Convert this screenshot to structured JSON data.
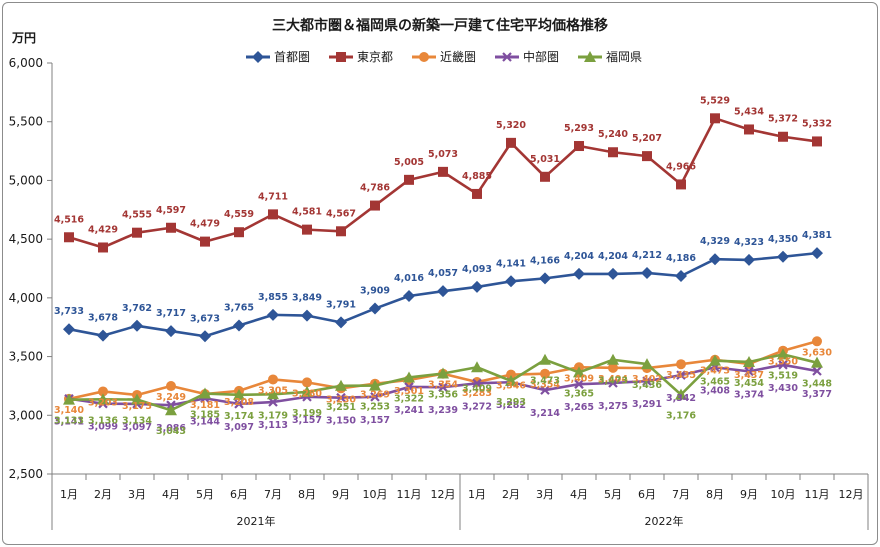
{
  "chart_data": {
    "type": "line",
    "title": "三大都市圏＆福岡県の新築一戸建て住宅平均価格推移",
    "ylabel": "万円",
    "ylim": [
      2500,
      6000
    ],
    "yticks": [
      "2,500",
      "3,000",
      "3,500",
      "4,000",
      "4,500",
      "5,000",
      "5,500",
      "6,000"
    ],
    "grid": false,
    "legend_position": "top",
    "categories": [
      "1月",
      "2月",
      "3月",
      "4月",
      "5月",
      "6月",
      "7月",
      "8月",
      "9月",
      "10月",
      "11月",
      "12月",
      "1月",
      "2月",
      "3月",
      "4月",
      "5月",
      "6月",
      "7月",
      "8月",
      "9月",
      "10月",
      "11月",
      "12月"
    ],
    "year_groups": [
      {
        "label": "2021年",
        "start": 0,
        "count": 12
      },
      {
        "label": "2022年",
        "start": 12,
        "count": 12
      }
    ],
    "series": [
      {
        "name": "首都圏",
        "color": "#2e5597",
        "marker": "diamond",
        "values": [
          3733,
          3678,
          3762,
          3717,
          3673,
          3765,
          3855,
          3849,
          3791,
          3909,
          4016,
          4057,
          4093,
          4141,
          4166,
          4204,
          4204,
          4212,
          4186,
          4329,
          4323,
          4350,
          4381,
          null
        ],
        "labels": [
          "3,733",
          "3,678",
          "3,762",
          "3,717",
          "3,673",
          "3,765",
          "3,855",
          "3,849",
          "3,791",
          "3,909",
          "4,016",
          "4,057",
          "4,093",
          "4,141",
          "4,166",
          "4,204",
          "4,204",
          "4,212",
          "4,186",
          "4,329",
          "4,323",
          "4,350",
          "4,381",
          null
        ]
      },
      {
        "name": "東京都",
        "color": "#a33634",
        "marker": "square",
        "values": [
          4516,
          4429,
          4555,
          4597,
          4479,
          4559,
          4711,
          4581,
          4567,
          4786,
          5005,
          5073,
          4885,
          5320,
          5031,
          5293,
          5240,
          5207,
          4966,
          5529,
          5434,
          5372,
          5332,
          null
        ],
        "labels": [
          "4,516",
          "4,429",
          "4,555",
          "4,597",
          "4,479",
          "4,559",
          "4,711",
          "4,581",
          "4,567",
          "4,786",
          "5,005",
          "5,073",
          "4,885",
          "5,320",
          "5,031",
          "5,293",
          "5,240",
          "5,207",
          "4,966",
          "5,529",
          "5,434",
          "5,372",
          "5,332",
          null
        ]
      },
      {
        "name": "近畿圏",
        "color": "#e8873a",
        "marker": "circle",
        "values": [
          3140,
          3203,
          3173,
          3249,
          3181,
          3208,
          3305,
          3280,
          3230,
          3269,
          3301,
          3354,
          3283,
          3346,
          3354,
          3409,
          3404,
          3402,
          3435,
          3473,
          3437,
          3550,
          3630,
          null
        ],
        "labels": [
          "3,140",
          "3,203",
          "3,173",
          "3,249",
          "3,181",
          "3,208",
          "3,305",
          "3,280",
          "3,230",
          "3,269",
          "3,301",
          "3,354",
          "3,283",
          "3,346",
          "3,354",
          "3,409",
          "3,404",
          "3,402",
          "3,435",
          "3,473",
          "3,437",
          "3,550",
          "3,630",
          null
        ]
      },
      {
        "name": "中部圏",
        "color": "#7f4fa0",
        "marker": "x",
        "values": [
          3141,
          3099,
          3097,
          3086,
          3144,
          3097,
          3113,
          3157,
          3150,
          3157,
          3241,
          3239,
          3272,
          3282,
          3214,
          3265,
          3275,
          3291,
          3342,
          3408,
          3374,
          3430,
          3377,
          null
        ],
        "labels": [
          "3,141",
          "3,099",
          "3,097",
          "3,086",
          "3,144",
          "3,097",
          "3,113",
          "3,157",
          "3,150",
          "3,157",
          "3,241",
          "3,239",
          "3,272",
          "3,282",
          "3,214",
          "3,265",
          "3,275",
          "3,291",
          "3,342",
          "3,408",
          "3,374",
          "3,430",
          "3,377",
          null
        ]
      },
      {
        "name": "福岡県",
        "color": "#7ba03f",
        "marker": "triangle",
        "values": [
          3133,
          3136,
          3134,
          3043,
          3185,
          3174,
          3179,
          3199,
          3251,
          3253,
          3322,
          3356,
          3409,
          3293,
          3473,
          3365,
          3473,
          3436,
          3176,
          3465,
          3454,
          3519,
          3448,
          null
        ],
        "labels": [
          "3,133",
          "3,136",
          "3,134",
          "3,043",
          "3,185",
          "3,174",
          "3,179",
          "3,199",
          "3,251",
          "3,253",
          "3,322",
          "3,356",
          "3,409",
          "3,293",
          "3,473",
          "3,365",
          "3,473",
          "3,436",
          "3,176",
          "3,465",
          "3,454",
          "3,519",
          "3,448",
          null
        ]
      }
    ]
  }
}
